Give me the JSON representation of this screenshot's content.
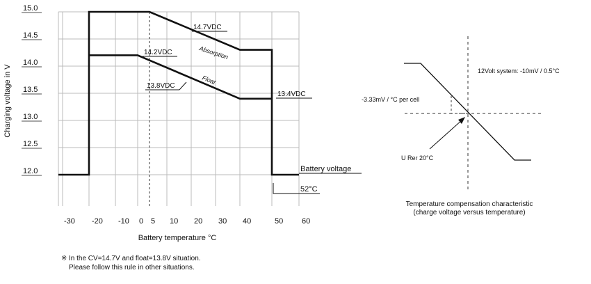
{
  "chart_data": [
    {
      "type": "line",
      "ylabel": "Charging voltage in V",
      "xlabel": "Battery temperature  °C",
      "xlim": [
        -35,
        60
      ],
      "ylim": [
        11.5,
        15.0
      ],
      "y_ticks": [
        15.0,
        14.5,
        14.0,
        13.5,
        13.0,
        12.5,
        12.0
      ],
      "y_tick_labels": [
        "15.0",
        "14.5",
        "14.0",
        "13.5",
        "13.0",
        "12.5",
        "12.0"
      ],
      "x_ticks": [
        -30,
        -20,
        -10,
        0,
        5,
        10,
        20,
        30,
        40,
        50,
        60
      ],
      "x_tick_labels": [
        "-30",
        "-20",
        "-10",
        "0",
        "5",
        "10",
        "20",
        "30",
        "40",
        "50",
        "60"
      ],
      "grid": true,
      "series": [
        {
          "name": "Absorption",
          "x": [
            -35,
            -20,
            -20,
            5,
            40,
            50,
            50,
            60
          ],
          "y": [
            12.0,
            12.0,
            15.0,
            15.0,
            14.3,
            14.3,
            12.0,
            12.0
          ]
        },
        {
          "name": "Float",
          "x": [
            -20,
            0,
            40,
            50
          ],
          "y": [
            14.2,
            14.2,
            13.4,
            13.4
          ]
        }
      ],
      "reference_line_x": 5,
      "annotations": {
        "v147": "14.7VDC",
        "v142": "14.2VDC",
        "v138": "13.8VDC",
        "v134": "13.4VDC",
        "absorption": "Absorption",
        "float": "Float",
        "battery_voltage": "Battery voltage",
        "cutoff": "52°C"
      }
    },
    {
      "type": "line",
      "title": "Temperature compensation characteristic",
      "subtitle": "(charge voltage versus temperature)",
      "annotations": {
        "system": "12Volt system: -10mV / 0.5°C",
        "per_cell": "-3.33mV / °C per cell",
        "reference": "U Rer 20°C"
      }
    }
  ],
  "footnote": {
    "marker": "※",
    "line1": "In the CV=14.7V and float=13.8V situation.",
    "line2": "Please follow this rule in other situations."
  }
}
